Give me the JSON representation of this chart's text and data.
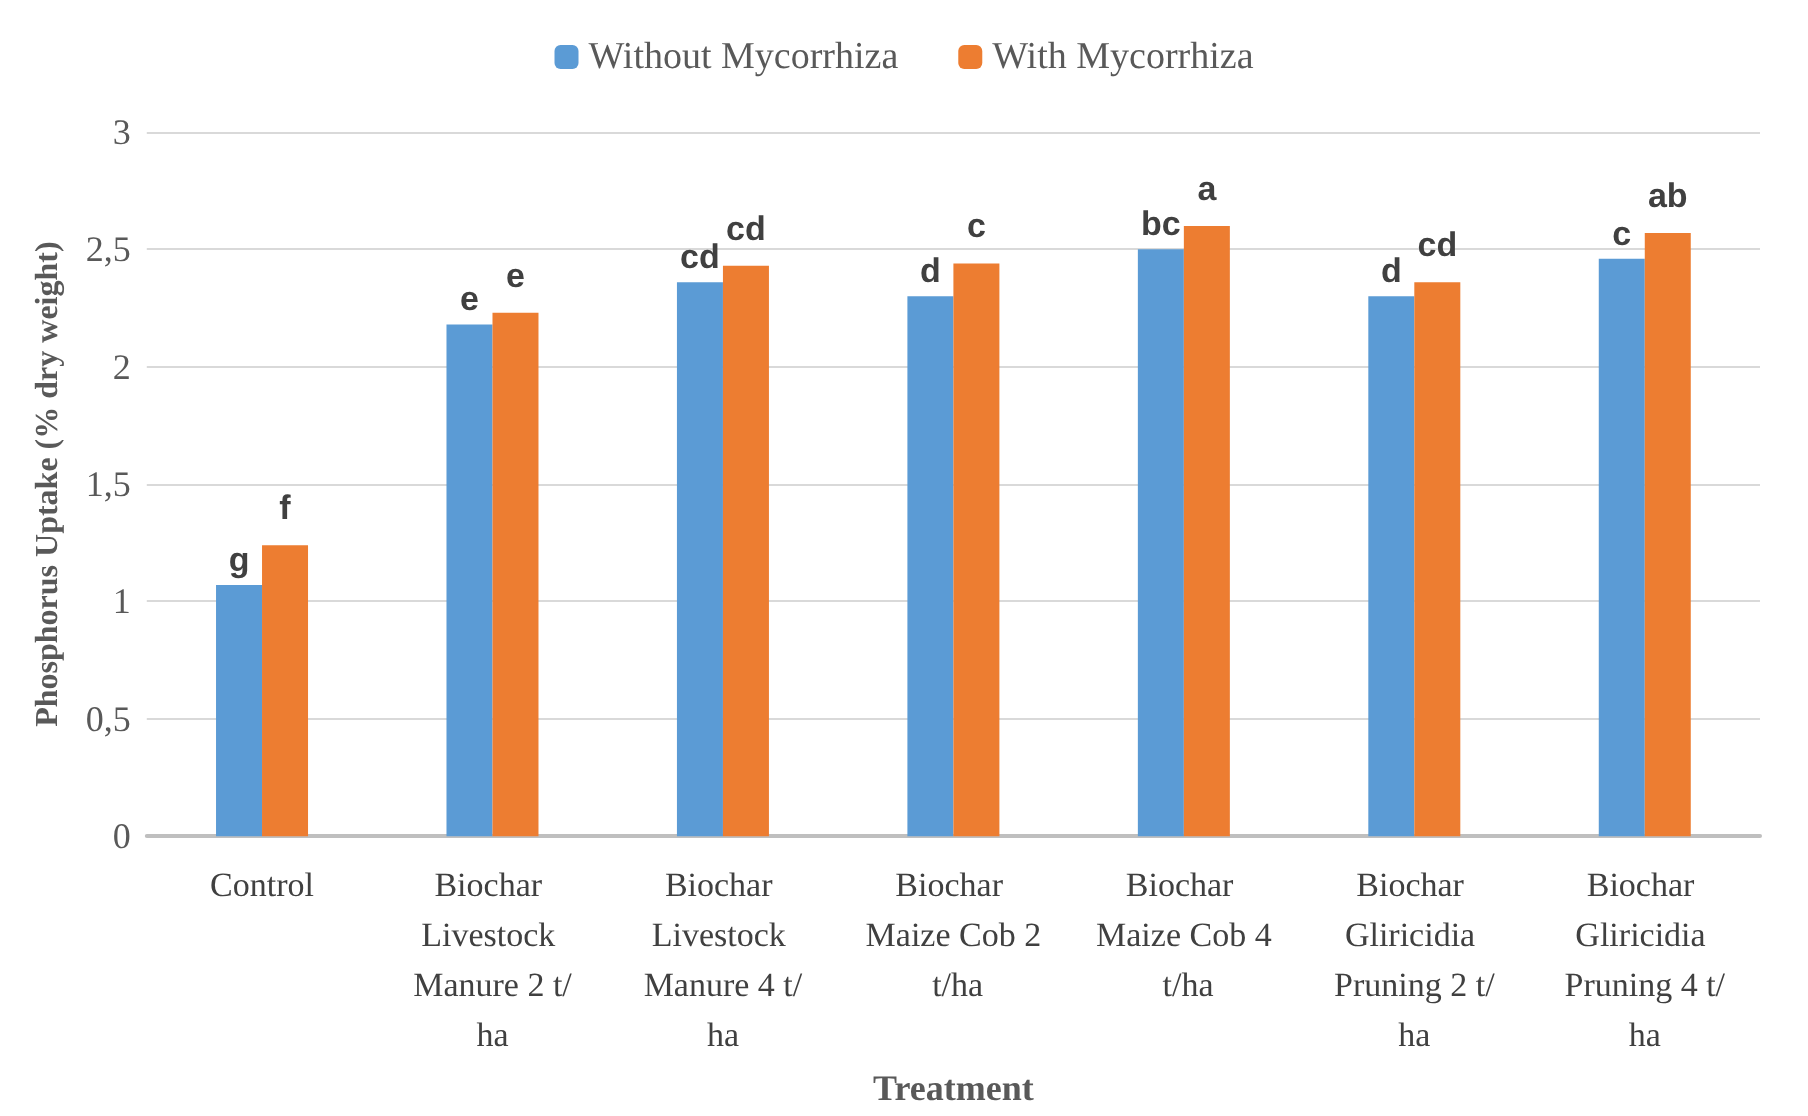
{
  "chart_data": {
    "type": "bar",
    "xlabel": "Treatment",
    "ylabel": "Phosphorus Uptake (% dry weight)",
    "categories": [
      "Control",
      "Biochar Livestock Manure 2 t/ha",
      "Biochar Livestock Manure 4 t/ha",
      "Biochar Maize Cob 2 t/ha",
      "Biochar Maize Cob 4 t/ha",
      "Biochar Gliricidia Pruning 2 t/ha",
      "Biochar Gliricidia Pruning 4 t/ha"
    ],
    "series": [
      {
        "name": "Without Mycorrhiza",
        "color": "#5b9bd5",
        "values": [
          1.07,
          2.18,
          2.36,
          2.3,
          2.5,
          2.3,
          2.46
        ],
        "value_labels": [
          "g",
          "e",
          "cd",
          "d",
          "bc",
          "d",
          "c"
        ]
      },
      {
        "name": "With Mycorrhiza",
        "color": "#ed7d31",
        "values": [
          1.24,
          2.23,
          2.43,
          2.44,
          2.6,
          2.36,
          2.57
        ],
        "value_labels": [
          "f",
          "e",
          "cd",
          "c",
          "a",
          "cd",
          "ab"
        ]
      }
    ],
    "ylim": [
      0,
      3
    ],
    "yticks": [
      0,
      {
        "value": 0.5,
        "label": "0,5"
      },
      1,
      {
        "value": 1.5,
        "label": "1,5"
      },
      2,
      {
        "value": 2.5,
        "label": "2,5"
      },
      3
    ],
    "grid": "y",
    "legend": "top"
  }
}
